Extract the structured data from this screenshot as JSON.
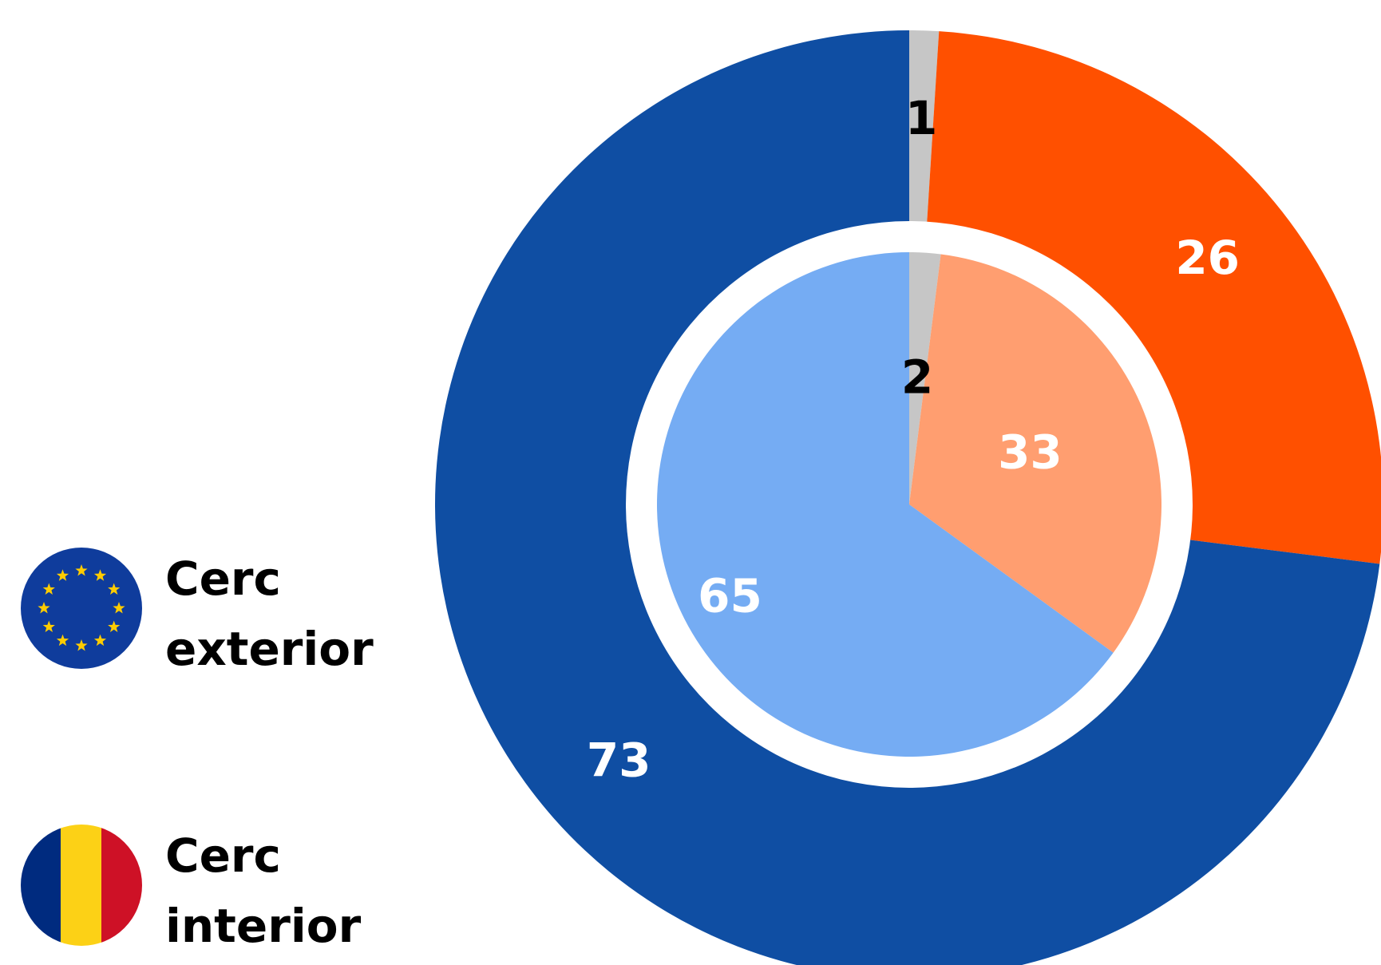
{
  "chart_data": [
    {
      "type": "pie",
      "ring": "outer",
      "values": [
        1,
        26,
        73
      ],
      "colors": [
        "#c6c6c6",
        "#ff5000",
        "#0f4ea3"
      ],
      "label_colors": [
        "#000000",
        "#ffffff",
        "#ffffff"
      ],
      "data_labels": [
        "1",
        "26",
        "73"
      ]
    },
    {
      "type": "pie",
      "ring": "inner",
      "values": [
        2,
        33,
        65
      ],
      "colors": [
        "#c6c6c6",
        "#ff9e70",
        "#75acf3"
      ],
      "label_colors": [
        "#000000",
        "#ffffff",
        "#ffffff"
      ],
      "data_labels": [
        "2",
        "33",
        "65"
      ]
    }
  ],
  "legend": [
    {
      "icon": "eu-flag-icon",
      "line1": "Cerc",
      "line2": "exterior",
      "colors": {
        "blue": "#0f3c9c",
        "star": "#ffcc00"
      }
    },
    {
      "icon": "romania-flag-icon",
      "line1": "Cerc",
      "line2": "interior",
      "colors": {
        "blue": "#002b7f",
        "yellow": "#fcd116",
        "red": "#ce1126"
      }
    }
  ]
}
